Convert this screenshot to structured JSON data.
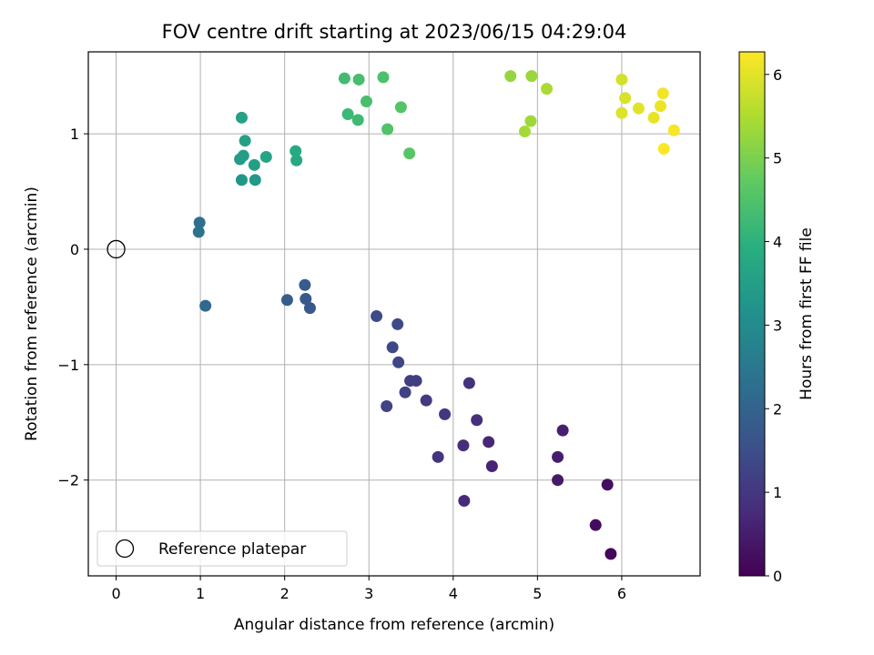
{
  "chart_data": {
    "type": "scatter",
    "title": "FOV centre drift starting at 2023/06/15 04:29:04",
    "xlabel": "Angular distance from reference (arcmin)",
    "ylabel": "Rotation from reference (arcmin)",
    "xlim": [
      -0.33,
      6.93
    ],
    "ylim": [
      -2.83,
      1.71
    ],
    "xticks": [
      0,
      1,
      2,
      3,
      4,
      5,
      6
    ],
    "yticks": [
      -2,
      -1,
      0,
      1
    ],
    "grid": true,
    "colormap": "viridis",
    "colorbar": {
      "label": "Hours from first FF file",
      "range": [
        0,
        6.27
      ],
      "ticks": [
        0,
        1,
        2,
        3,
        4,
        5,
        6
      ]
    },
    "reference": {
      "x": 0,
      "y": 0,
      "label": "Reference platepar"
    },
    "legend_position": "lower-left",
    "points": [
      {
        "x": 5.87,
        "y": -2.64,
        "c": 0.1
      },
      {
        "x": 5.69,
        "y": -2.39,
        "c": 0.2
      },
      {
        "x": 5.83,
        "y": -2.04,
        "c": 0.25
      },
      {
        "x": 5.24,
        "y": -2.0,
        "c": 0.45
      },
      {
        "x": 5.24,
        "y": -1.8,
        "c": 0.5
      },
      {
        "x": 5.3,
        "y": -1.57,
        "c": 0.55
      },
      {
        "x": 4.46,
        "y": -1.88,
        "c": 0.65
      },
      {
        "x": 4.42,
        "y": -1.67,
        "c": 0.7
      },
      {
        "x": 4.13,
        "y": -2.18,
        "c": 0.75
      },
      {
        "x": 4.12,
        "y": -1.7,
        "c": 0.8
      },
      {
        "x": 4.28,
        "y": -1.48,
        "c": 0.85
      },
      {
        "x": 4.19,
        "y": -1.16,
        "c": 0.9
      },
      {
        "x": 3.82,
        "y": -1.8,
        "c": 0.95
      },
      {
        "x": 3.9,
        "y": -1.43,
        "c": 1.0
      },
      {
        "x": 3.68,
        "y": -1.31,
        "c": 1.05
      },
      {
        "x": 3.56,
        "y": -1.14,
        "c": 1.1
      },
      {
        "x": 3.49,
        "y": -1.14,
        "c": 1.15
      },
      {
        "x": 3.43,
        "y": -1.24,
        "c": 1.2
      },
      {
        "x": 3.21,
        "y": -1.36,
        "c": 1.25
      },
      {
        "x": 3.35,
        "y": -0.98,
        "c": 1.3
      },
      {
        "x": 3.28,
        "y": -0.85,
        "c": 1.35
      },
      {
        "x": 3.34,
        "y": -0.65,
        "c": 1.4
      },
      {
        "x": 3.09,
        "y": -0.58,
        "c": 1.45
      },
      {
        "x": 2.3,
        "y": -0.51,
        "c": 1.7
      },
      {
        "x": 2.25,
        "y": -0.43,
        "c": 1.75
      },
      {
        "x": 2.24,
        "y": -0.31,
        "c": 1.8
      },
      {
        "x": 2.03,
        "y": -0.44,
        "c": 1.85
      },
      {
        "x": 1.06,
        "y": -0.49,
        "c": 2.1
      },
      {
        "x": 0.99,
        "y": 0.23,
        "c": 2.3
      },
      {
        "x": 0.98,
        "y": 0.15,
        "c": 2.35
      },
      {
        "x": 1.49,
        "y": 0.6,
        "c": 3.3
      },
      {
        "x": 1.65,
        "y": 0.6,
        "c": 3.35
      },
      {
        "x": 1.47,
        "y": 0.78,
        "c": 3.4
      },
      {
        "x": 1.51,
        "y": 0.81,
        "c": 3.45
      },
      {
        "x": 1.64,
        "y": 0.73,
        "c": 3.5
      },
      {
        "x": 1.53,
        "y": 0.94,
        "c": 3.55
      },
      {
        "x": 1.49,
        "y": 1.14,
        "c": 3.6
      },
      {
        "x": 1.78,
        "y": 0.8,
        "c": 3.65
      },
      {
        "x": 2.14,
        "y": 0.77,
        "c": 3.75
      },
      {
        "x": 2.13,
        "y": 0.85,
        "c": 3.8
      },
      {
        "x": 2.75,
        "y": 1.17,
        "c": 4.2
      },
      {
        "x": 2.87,
        "y": 1.12,
        "c": 4.25
      },
      {
        "x": 2.71,
        "y": 1.48,
        "c": 4.3
      },
      {
        "x": 2.88,
        "y": 1.47,
        "c": 4.35
      },
      {
        "x": 2.97,
        "y": 1.28,
        "c": 4.4
      },
      {
        "x": 3.17,
        "y": 1.49,
        "c": 4.45
      },
      {
        "x": 3.22,
        "y": 1.04,
        "c": 4.5
      },
      {
        "x": 3.38,
        "y": 1.23,
        "c": 4.55
      },
      {
        "x": 3.48,
        "y": 0.83,
        "c": 4.6
      },
      {
        "x": 4.68,
        "y": 1.5,
        "c": 5.25
      },
      {
        "x": 4.93,
        "y": 1.5,
        "c": 5.3
      },
      {
        "x": 4.92,
        "y": 1.11,
        "c": 5.35
      },
      {
        "x": 4.85,
        "y": 1.02,
        "c": 5.4
      },
      {
        "x": 5.11,
        "y": 1.39,
        "c": 5.45
      },
      {
        "x": 6.0,
        "y": 1.47,
        "c": 5.85
      },
      {
        "x": 6.04,
        "y": 1.31,
        "c": 5.9
      },
      {
        "x": 6.0,
        "y": 1.18,
        "c": 5.95
      },
      {
        "x": 6.2,
        "y": 1.22,
        "c": 6.0
      },
      {
        "x": 6.38,
        "y": 1.14,
        "c": 6.05
      },
      {
        "x": 6.46,
        "y": 1.24,
        "c": 6.1
      },
      {
        "x": 6.49,
        "y": 1.35,
        "c": 6.15
      },
      {
        "x": 6.62,
        "y": 1.03,
        "c": 6.2
      },
      {
        "x": 6.5,
        "y": 0.87,
        "c": 6.25
      }
    ]
  }
}
